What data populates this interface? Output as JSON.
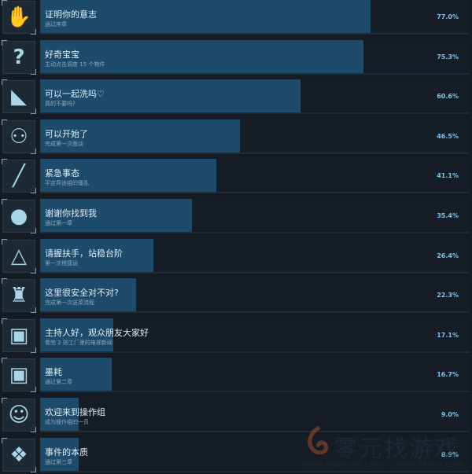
{
  "colors": {
    "fill": "#1d4b6c",
    "track": "#161d26",
    "percent": "#7fc4ec"
  },
  "achievements": [
    {
      "title": "证明你的意志",
      "desc": "通过序章",
      "percent": "77.0%",
      "value": 77.0,
      "icon": "hand-icon"
    },
    {
      "title": "好奇宝宝",
      "desc": "主动点击调查 15 个物件",
      "percent": "75.3%",
      "value": 75.3,
      "icon": "question-icon"
    },
    {
      "title": "可以一起洗吗♡",
      "desc": "真的不要吗?",
      "percent": "60.6%",
      "value": 60.6,
      "icon": "creature-icon"
    },
    {
      "title": "可以开始了",
      "desc": "完成第一次面谈",
      "percent": "46.5%",
      "value": 46.5,
      "icon": "crowd-icon"
    },
    {
      "title": "紧急事态",
      "desc": "平定异途组的骚乱",
      "percent": "41.1%",
      "value": 41.1,
      "icon": "blade-icon"
    },
    {
      "title": "谢谢你找到我",
      "desc": "通过第一章",
      "percent": "35.4%",
      "value": 35.4,
      "icon": "globe-icon"
    },
    {
      "title": "请握扶手，站稳台阶",
      "desc": "第一次搭捷运",
      "percent": "26.4%",
      "value": 26.4,
      "icon": "handle-icon"
    },
    {
      "title": "这里很安全对不对?",
      "desc": "完成第一次送菜流程",
      "percent": "22.3%",
      "value": 22.3,
      "icon": "armor-icon"
    },
    {
      "title": "主持人好，观众朋友大家好",
      "desc": "看完 2 则工厂里的电视新闻",
      "percent": "17.1%",
      "value": 17.1,
      "icon": "presenter-icon"
    },
    {
      "title": "墨耗",
      "desc": "通过第二章",
      "percent": "16.7%",
      "value": 16.7,
      "icon": "screen-person-icon"
    },
    {
      "title": "欢迎来到操作组",
      "desc": "成为操作组的一员",
      "percent": "9.0%",
      "value": 9.0,
      "icon": "glasses-person-icon"
    },
    {
      "title": "事件的本质",
      "desc": "通过第三章",
      "percent": "8.9%",
      "value": 8.9,
      "icon": "diamond-icon"
    }
  ],
  "watermark": {
    "name": "零元找游戏",
    "url": "www.lingliuyx.com   www.06zyx.com"
  }
}
